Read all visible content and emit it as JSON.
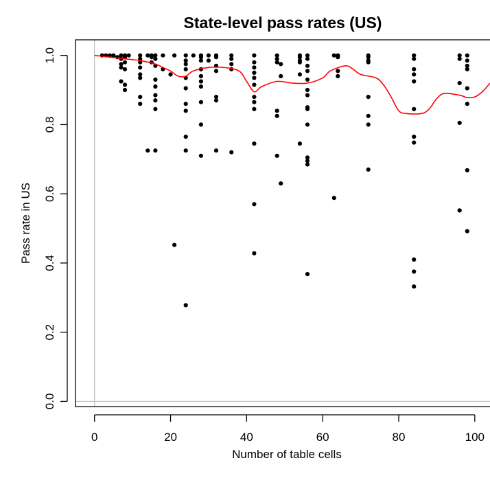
{
  "chart_data": {
    "type": "scatter",
    "title": "State-level pass rates (US)",
    "xlabel": "Number of table cells",
    "ylabel": "Pass rate in US",
    "xlim": [
      -5,
      104
    ],
    "ylim": [
      -0.015,
      1.045
    ],
    "xticks": [
      0,
      20,
      40,
      60,
      80,
      100
    ],
    "yticks": [
      0.0,
      0.2,
      0.4,
      0.6,
      0.8,
      1.0
    ],
    "xtick_labels": [
      "0",
      "20",
      "40",
      "60",
      "80",
      "100"
    ],
    "ytick_labels": [
      "0.0",
      "0.2",
      "0.4",
      "0.6",
      "0.8",
      "1.0"
    ],
    "reference_lines": {
      "x": 0,
      "y": 0,
      "color": "#bebebe"
    },
    "point_color": "#000000",
    "smooth_color": "#ff0000",
    "points": [
      [
        2,
        1.0
      ],
      [
        3,
        1.0
      ],
      [
        4,
        1.0
      ],
      [
        5,
        1.0
      ],
      [
        6,
        0.995
      ],
      [
        7,
        1.0
      ],
      [
        7,
        0.99
      ],
      [
        7,
        0.975
      ],
      [
        7,
        0.965
      ],
      [
        7,
        0.925
      ],
      [
        8,
        1.0
      ],
      [
        8,
        0.995
      ],
      [
        8,
        0.98
      ],
      [
        8,
        0.96
      ],
      [
        8,
        0.915
      ],
      [
        8,
        0.9
      ],
      [
        9,
        1.0
      ],
      [
        12,
        1.0
      ],
      [
        12,
        0.99
      ],
      [
        12,
        0.98
      ],
      [
        12,
        0.965
      ],
      [
        12,
        0.945
      ],
      [
        12,
        0.935
      ],
      [
        12,
        0.88
      ],
      [
        12,
        0.86
      ],
      [
        14,
        1.0
      ],
      [
        14,
        0.725
      ],
      [
        15,
        1.0
      ],
      [
        15,
        0.995
      ],
      [
        15,
        0.98
      ],
      [
        16,
        1.0
      ],
      [
        16,
        0.99
      ],
      [
        16,
        0.97
      ],
      [
        16,
        0.93
      ],
      [
        16,
        0.91
      ],
      [
        16,
        0.885
      ],
      [
        16,
        0.87
      ],
      [
        16,
        0.845
      ],
      [
        16,
        0.725
      ],
      [
        18,
        1.0
      ],
      [
        18,
        0.96
      ],
      [
        20,
        0.945
      ],
      [
        21,
        1.0
      ],
      [
        21,
        0.452
      ],
      [
        24,
        1.0
      ],
      [
        24,
        0.985
      ],
      [
        24,
        0.975
      ],
      [
        24,
        0.96
      ],
      [
        24,
        0.935
      ],
      [
        24,
        0.905
      ],
      [
        24,
        0.86
      ],
      [
        24,
        0.84
      ],
      [
        24,
        0.765
      ],
      [
        24,
        0.725
      ],
      [
        24,
        0.278
      ],
      [
        26,
        1.0
      ],
      [
        28,
        1.0
      ],
      [
        28,
        0.995
      ],
      [
        28,
        0.985
      ],
      [
        28,
        0.96
      ],
      [
        28,
        0.94
      ],
      [
        28,
        0.925
      ],
      [
        28,
        0.91
      ],
      [
        28,
        0.865
      ],
      [
        28,
        0.8
      ],
      [
        28,
        0.71
      ],
      [
        30,
        1.0
      ],
      [
        30,
        0.985
      ],
      [
        32,
        1.0
      ],
      [
        32,
        0.995
      ],
      [
        32,
        0.97
      ],
      [
        32,
        0.955
      ],
      [
        32,
        0.88
      ],
      [
        32,
        0.87
      ],
      [
        32,
        0.725
      ],
      [
        36,
        1.0
      ],
      [
        36,
        0.99
      ],
      [
        36,
        0.975
      ],
      [
        36,
        0.96
      ],
      [
        36,
        0.72
      ],
      [
        42,
        1.0
      ],
      [
        42,
        0.98
      ],
      [
        42,
        0.965
      ],
      [
        42,
        0.95
      ],
      [
        42,
        0.935
      ],
      [
        42,
        0.915
      ],
      [
        42,
        0.88
      ],
      [
        42,
        0.865
      ],
      [
        42,
        0.845
      ],
      [
        42,
        0.745
      ],
      [
        42,
        0.57
      ],
      [
        42,
        0.428
      ],
      [
        48,
        1.0
      ],
      [
        48,
        0.99
      ],
      [
        48,
        0.98
      ],
      [
        48,
        0.84
      ],
      [
        48,
        0.825
      ],
      [
        48,
        0.71
      ],
      [
        49,
        0.975
      ],
      [
        49,
        0.94
      ],
      [
        49,
        0.63
      ],
      [
        54,
        1.0
      ],
      [
        54,
        0.995
      ],
      [
        54,
        0.985
      ],
      [
        54,
        0.98
      ],
      [
        54,
        0.945
      ],
      [
        54,
        0.745
      ],
      [
        56,
        1.0
      ],
      [
        56,
        0.99
      ],
      [
        56,
        0.97
      ],
      [
        56,
        0.955
      ],
      [
        56,
        0.93
      ],
      [
        56,
        0.9
      ],
      [
        56,
        0.885
      ],
      [
        56,
        0.85
      ],
      [
        56,
        0.845
      ],
      [
        56,
        0.8
      ],
      [
        56,
        0.705
      ],
      [
        56,
        0.695
      ],
      [
        56,
        0.685
      ],
      [
        56,
        0.368
      ],
      [
        63,
        1.0
      ],
      [
        63,
        0.588
      ],
      [
        64,
        1.0
      ],
      [
        64,
        0.995
      ],
      [
        64,
        0.955
      ],
      [
        64,
        0.94
      ],
      [
        72,
        1.0
      ],
      [
        72,
        0.995
      ],
      [
        72,
        0.985
      ],
      [
        72,
        0.98
      ],
      [
        72,
        0.88
      ],
      [
        72,
        0.825
      ],
      [
        72,
        0.8
      ],
      [
        72,
        0.67
      ],
      [
        84,
        1.0
      ],
      [
        84,
        0.99
      ],
      [
        84,
        0.96
      ],
      [
        84,
        0.945
      ],
      [
        84,
        0.925
      ],
      [
        84,
        0.845
      ],
      [
        84,
        0.765
      ],
      [
        84,
        0.748
      ],
      [
        84,
        0.41
      ],
      [
        84,
        0.375
      ],
      [
        84,
        0.332
      ],
      [
        96,
        1.0
      ],
      [
        96,
        0.99
      ],
      [
        96,
        0.92
      ],
      [
        96,
        0.805
      ],
      [
        96,
        0.552
      ],
      [
        98,
        1.0
      ],
      [
        98,
        0.985
      ],
      [
        98,
        0.97
      ],
      [
        98,
        0.96
      ],
      [
        98,
        0.905
      ],
      [
        98,
        0.86
      ],
      [
        98,
        0.668
      ],
      [
        98,
        0.492
      ]
    ],
    "smooth": [
      [
        0,
        1.0
      ],
      [
        4,
        0.995
      ],
      [
        8,
        0.99
      ],
      [
        12,
        0.985
      ],
      [
        16,
        0.975
      ],
      [
        18,
        0.965
      ],
      [
        20,
        0.955
      ],
      [
        22,
        0.94
      ],
      [
        24,
        0.94
      ],
      [
        26,
        0.955
      ],
      [
        30,
        0.965
      ],
      [
        34,
        0.965
      ],
      [
        38,
        0.955
      ],
      [
        40,
        0.925
      ],
      [
        42,
        0.895
      ],
      [
        44,
        0.91
      ],
      [
        48,
        0.925
      ],
      [
        52,
        0.92
      ],
      [
        56,
        0.92
      ],
      [
        60,
        0.935
      ],
      [
        62,
        0.955
      ],
      [
        66,
        0.97
      ],
      [
        68,
        0.96
      ],
      [
        70,
        0.945
      ],
      [
        74,
        0.935
      ],
      [
        76,
        0.915
      ],
      [
        78,
        0.88
      ],
      [
        80,
        0.84
      ],
      [
        82,
        0.832
      ],
      [
        86,
        0.832
      ],
      [
        88,
        0.845
      ],
      [
        90,
        0.875
      ],
      [
        92,
        0.89
      ],
      [
        96,
        0.885
      ],
      [
        98,
        0.878
      ],
      [
        100,
        0.88
      ],
      [
        102,
        0.895
      ],
      [
        104,
        0.92
      ]
    ]
  }
}
